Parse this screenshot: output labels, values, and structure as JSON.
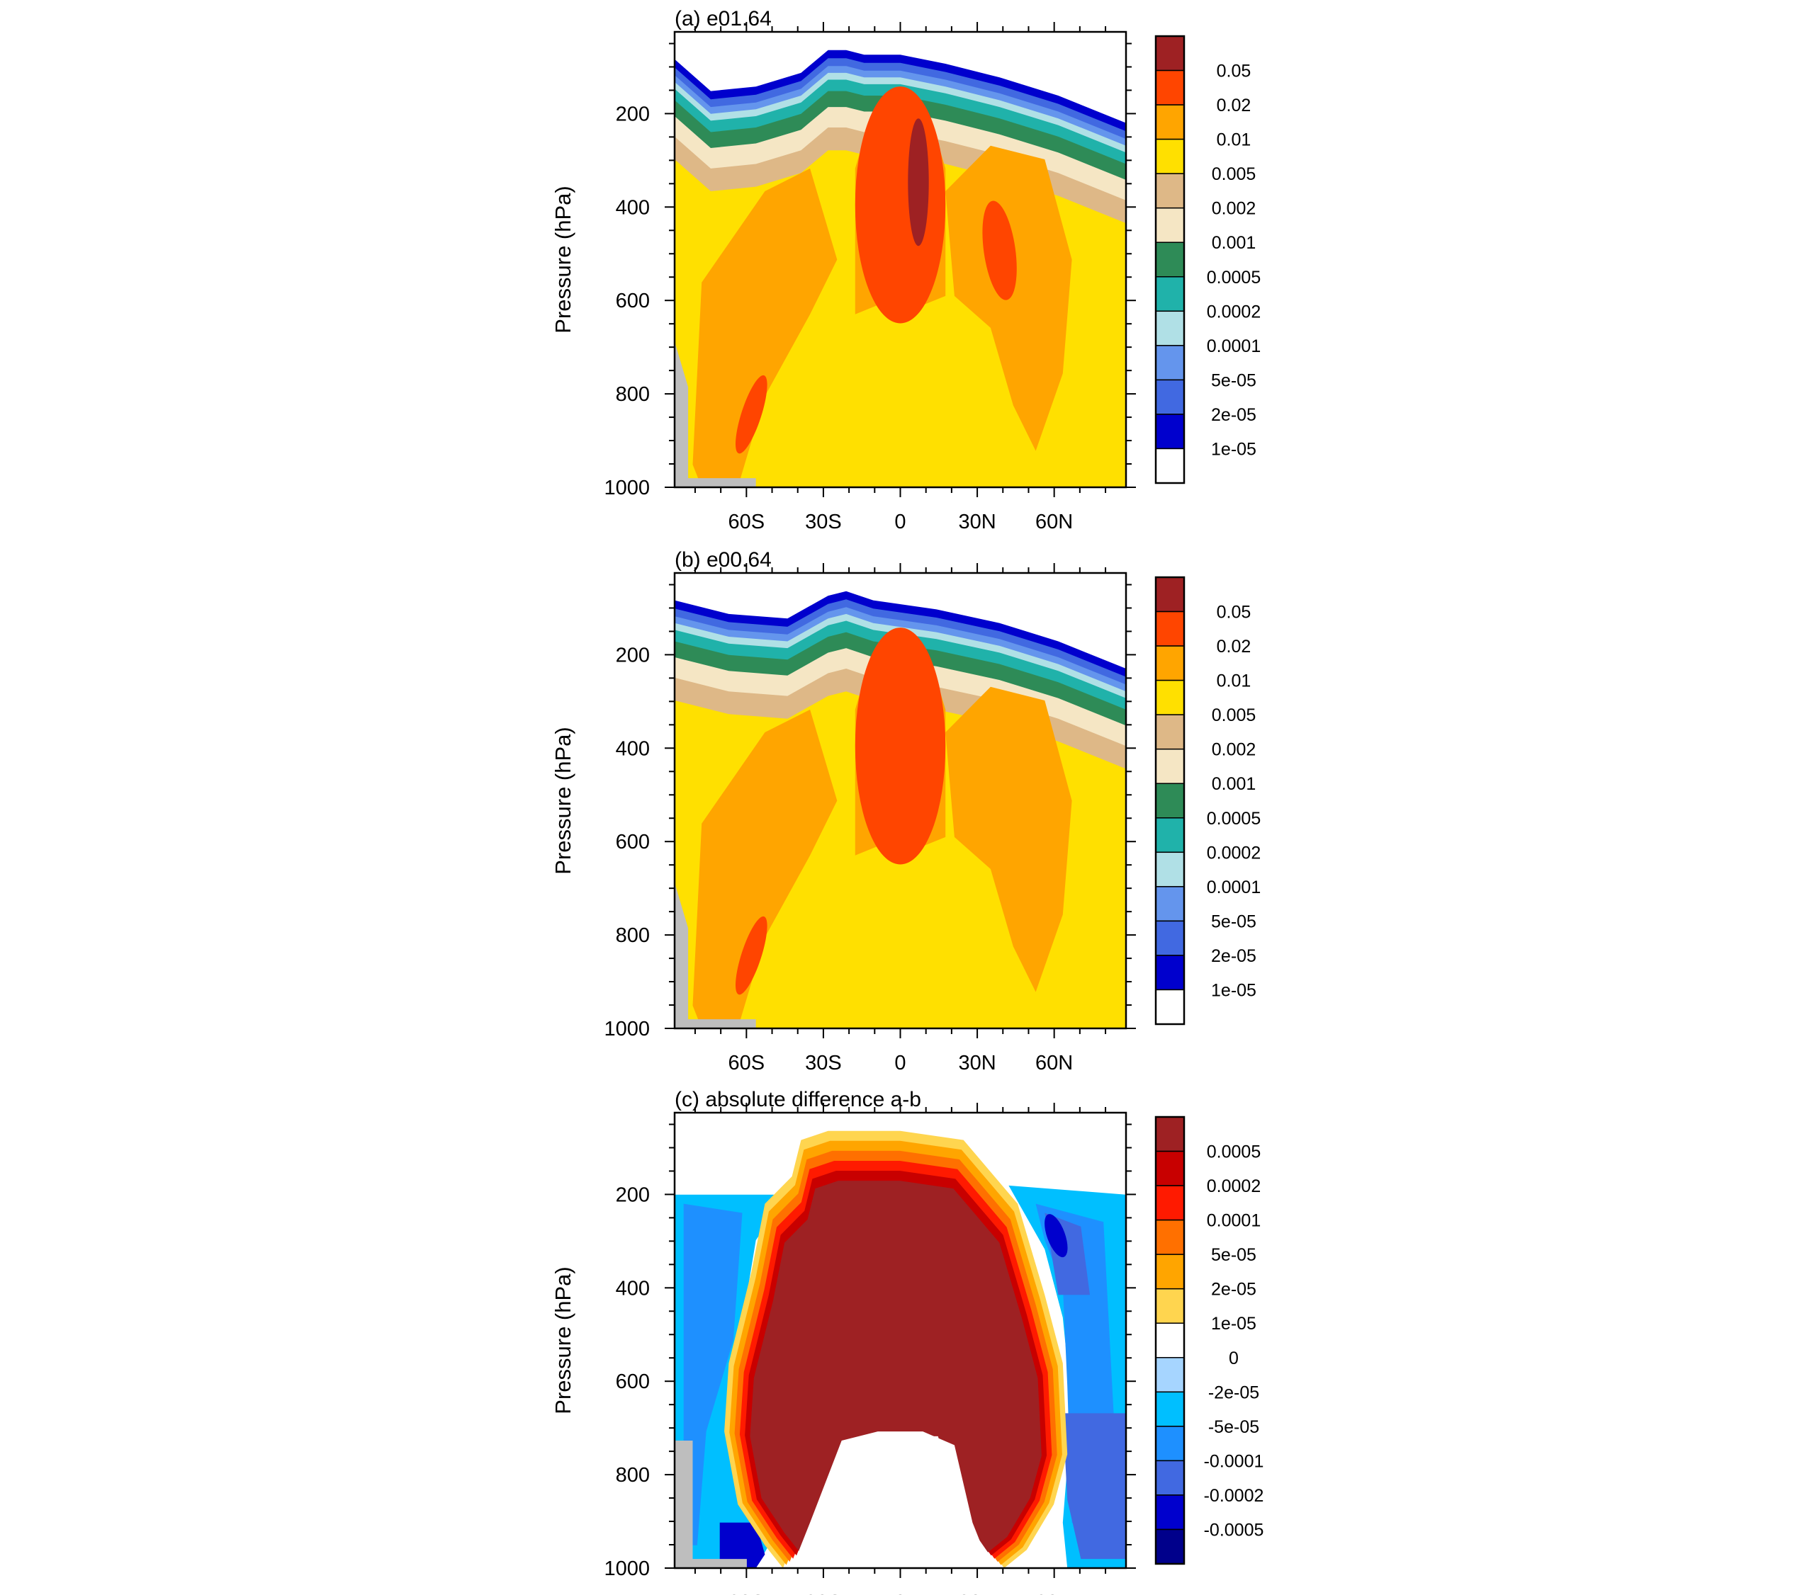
{
  "chart_data": [
    {
      "type": "heatmap",
      "title": "(a) e01.64",
      "xlabel": "",
      "ylabel": "Pressure (hPa)",
      "x_ticks": [
        "60S",
        "30S",
        "0",
        "30N",
        "60N"
      ],
      "x_tick_values": [
        -60,
        -30,
        0,
        30,
        60
      ],
      "xlim": [
        -88,
        88
      ],
      "y_ticks": [
        "200",
        "400",
        "600",
        "800",
        "1000"
      ],
      "y_tick_values": [
        200,
        400,
        600,
        800,
        1000
      ],
      "ylim": [
        1000,
        25
      ],
      "colorbar_labels": [
        "0.05",
        "0.02",
        "0.01",
        "0.005",
        "0.002",
        "0.001",
        "0.0005",
        "0.0002",
        "0.0001",
        "5e-05",
        "2e-05",
        "1e-05"
      ],
      "colorbar_colors": [
        "#9e2123",
        "#ff4500",
        "#ffa500",
        "#ffe000",
        "#deb887",
        "#f5e6c4",
        "#2e8b57",
        "#20b2aa",
        "#b0e0e6",
        "#6495ed",
        "#4169e1",
        "#0000cd",
        "#ffffff"
      ],
      "missing_color": "#bebebe"
    },
    {
      "type": "heatmap",
      "title": "(b) e00.64",
      "xlabel": "",
      "ylabel": "Pressure (hPa)",
      "x_ticks": [
        "60S",
        "30S",
        "0",
        "30N",
        "60N"
      ],
      "x_tick_values": [
        -60,
        -30,
        0,
        30,
        60
      ],
      "xlim": [
        -88,
        88
      ],
      "y_ticks": [
        "200",
        "400",
        "600",
        "800",
        "1000"
      ],
      "y_tick_values": [
        200,
        400,
        600,
        800,
        1000
      ],
      "ylim": [
        1000,
        25
      ],
      "colorbar_labels": [
        "0.05",
        "0.02",
        "0.01",
        "0.005",
        "0.002",
        "0.001",
        "0.0005",
        "0.0002",
        "0.0001",
        "5e-05",
        "2e-05",
        "1e-05"
      ],
      "colorbar_colors": [
        "#9e2123",
        "#ff4500",
        "#ffa500",
        "#ffe000",
        "#deb887",
        "#f5e6c4",
        "#2e8b57",
        "#20b2aa",
        "#b0e0e6",
        "#6495ed",
        "#4169e1",
        "#0000cd",
        "#ffffff"
      ],
      "missing_color": "#bebebe"
    },
    {
      "type": "heatmap",
      "title": "(c) absolute difference a-b",
      "xlabel": "",
      "ylabel": "Pressure (hPa)",
      "x_ticks": [
        "60S",
        "30S",
        "0",
        "30N",
        "60N"
      ],
      "x_tick_values": [
        -60,
        -30,
        0,
        30,
        60
      ],
      "xlim": [
        -88,
        88
      ],
      "y_ticks": [
        "200",
        "400",
        "600",
        "800",
        "1000"
      ],
      "y_tick_values": [
        200,
        400,
        600,
        800,
        1000
      ],
      "ylim": [
        1000,
        25
      ],
      "colorbar_labels": [
        "0.0005",
        "0.0002",
        "0.0001",
        "5e-05",
        "2e-05",
        "1e-05",
        "0",
        "-2e-05",
        "-5e-05",
        "-0.0001",
        "-0.0002",
        "-0.0005"
      ],
      "colorbar_colors": [
        "#9e2123",
        "#c80000",
        "#ff1a00",
        "#ff7000",
        "#ffa500",
        "#ffd54f",
        "#ffffff",
        "#a6d5ff",
        "#00bfff",
        "#1e90ff",
        "#4169e1",
        "#0000cd",
        "#00008b"
      ],
      "missing_color": "#bebebe"
    }
  ]
}
